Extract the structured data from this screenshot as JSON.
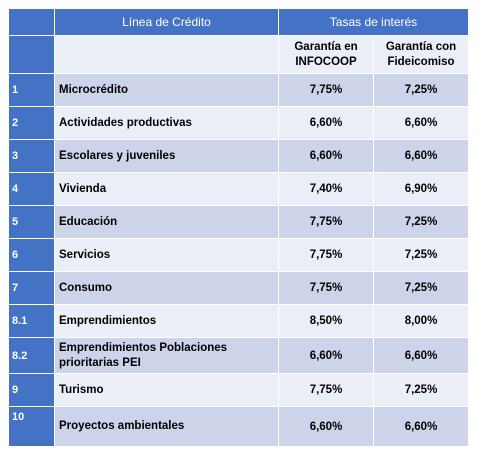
{
  "header": {
    "col_line": "Línea de Crédito",
    "col_rates": "Tasas de interés"
  },
  "subheader": {
    "col_infocoop": "Garantía en INFOCOOP",
    "col_fideicomiso": "Garantía con Fideicomiso"
  },
  "rows": [
    {
      "num": "1",
      "name": "Microcrédito",
      "infocoop": "7,75%",
      "fideicomiso": "7,25%"
    },
    {
      "num": "2",
      "name": "Actividades productivas",
      "infocoop": "6,60%",
      "fideicomiso": "6,60%"
    },
    {
      "num": "3",
      "name": "Escolares y juveniles",
      "infocoop": "6,60%",
      "fideicomiso": "6,60%"
    },
    {
      "num": "4",
      "name": "Vivienda",
      "infocoop": "7,40%",
      "fideicomiso": "6,90%"
    },
    {
      "num": "5",
      "name": "Educación",
      "infocoop": "7,75%",
      "fideicomiso": "7,25%"
    },
    {
      "num": "6",
      "name": "Servicios",
      "infocoop": "7,75%",
      "fideicomiso": "7,25%"
    },
    {
      "num": "7",
      "name": "Consumo",
      "infocoop": "7,75%",
      "fideicomiso": "7,25%"
    },
    {
      "num": "8.1",
      "name": "Emprendimientos",
      "infocoop": "8,50%",
      "fideicomiso": "8,00%"
    },
    {
      "num": "8.2",
      "name": "Emprendimientos Poblaciones prioritarias PEI",
      "infocoop": "6,60%",
      "fideicomiso": "6,60%"
    },
    {
      "num": "9",
      "name": "Turismo",
      "infocoop": "7,75%",
      "fideicomiso": "7,25%"
    },
    {
      "num": "10",
      "name": "Proyectos ambientales",
      "infocoop": "6,60%",
      "fideicomiso": "6,60%"
    }
  ]
}
